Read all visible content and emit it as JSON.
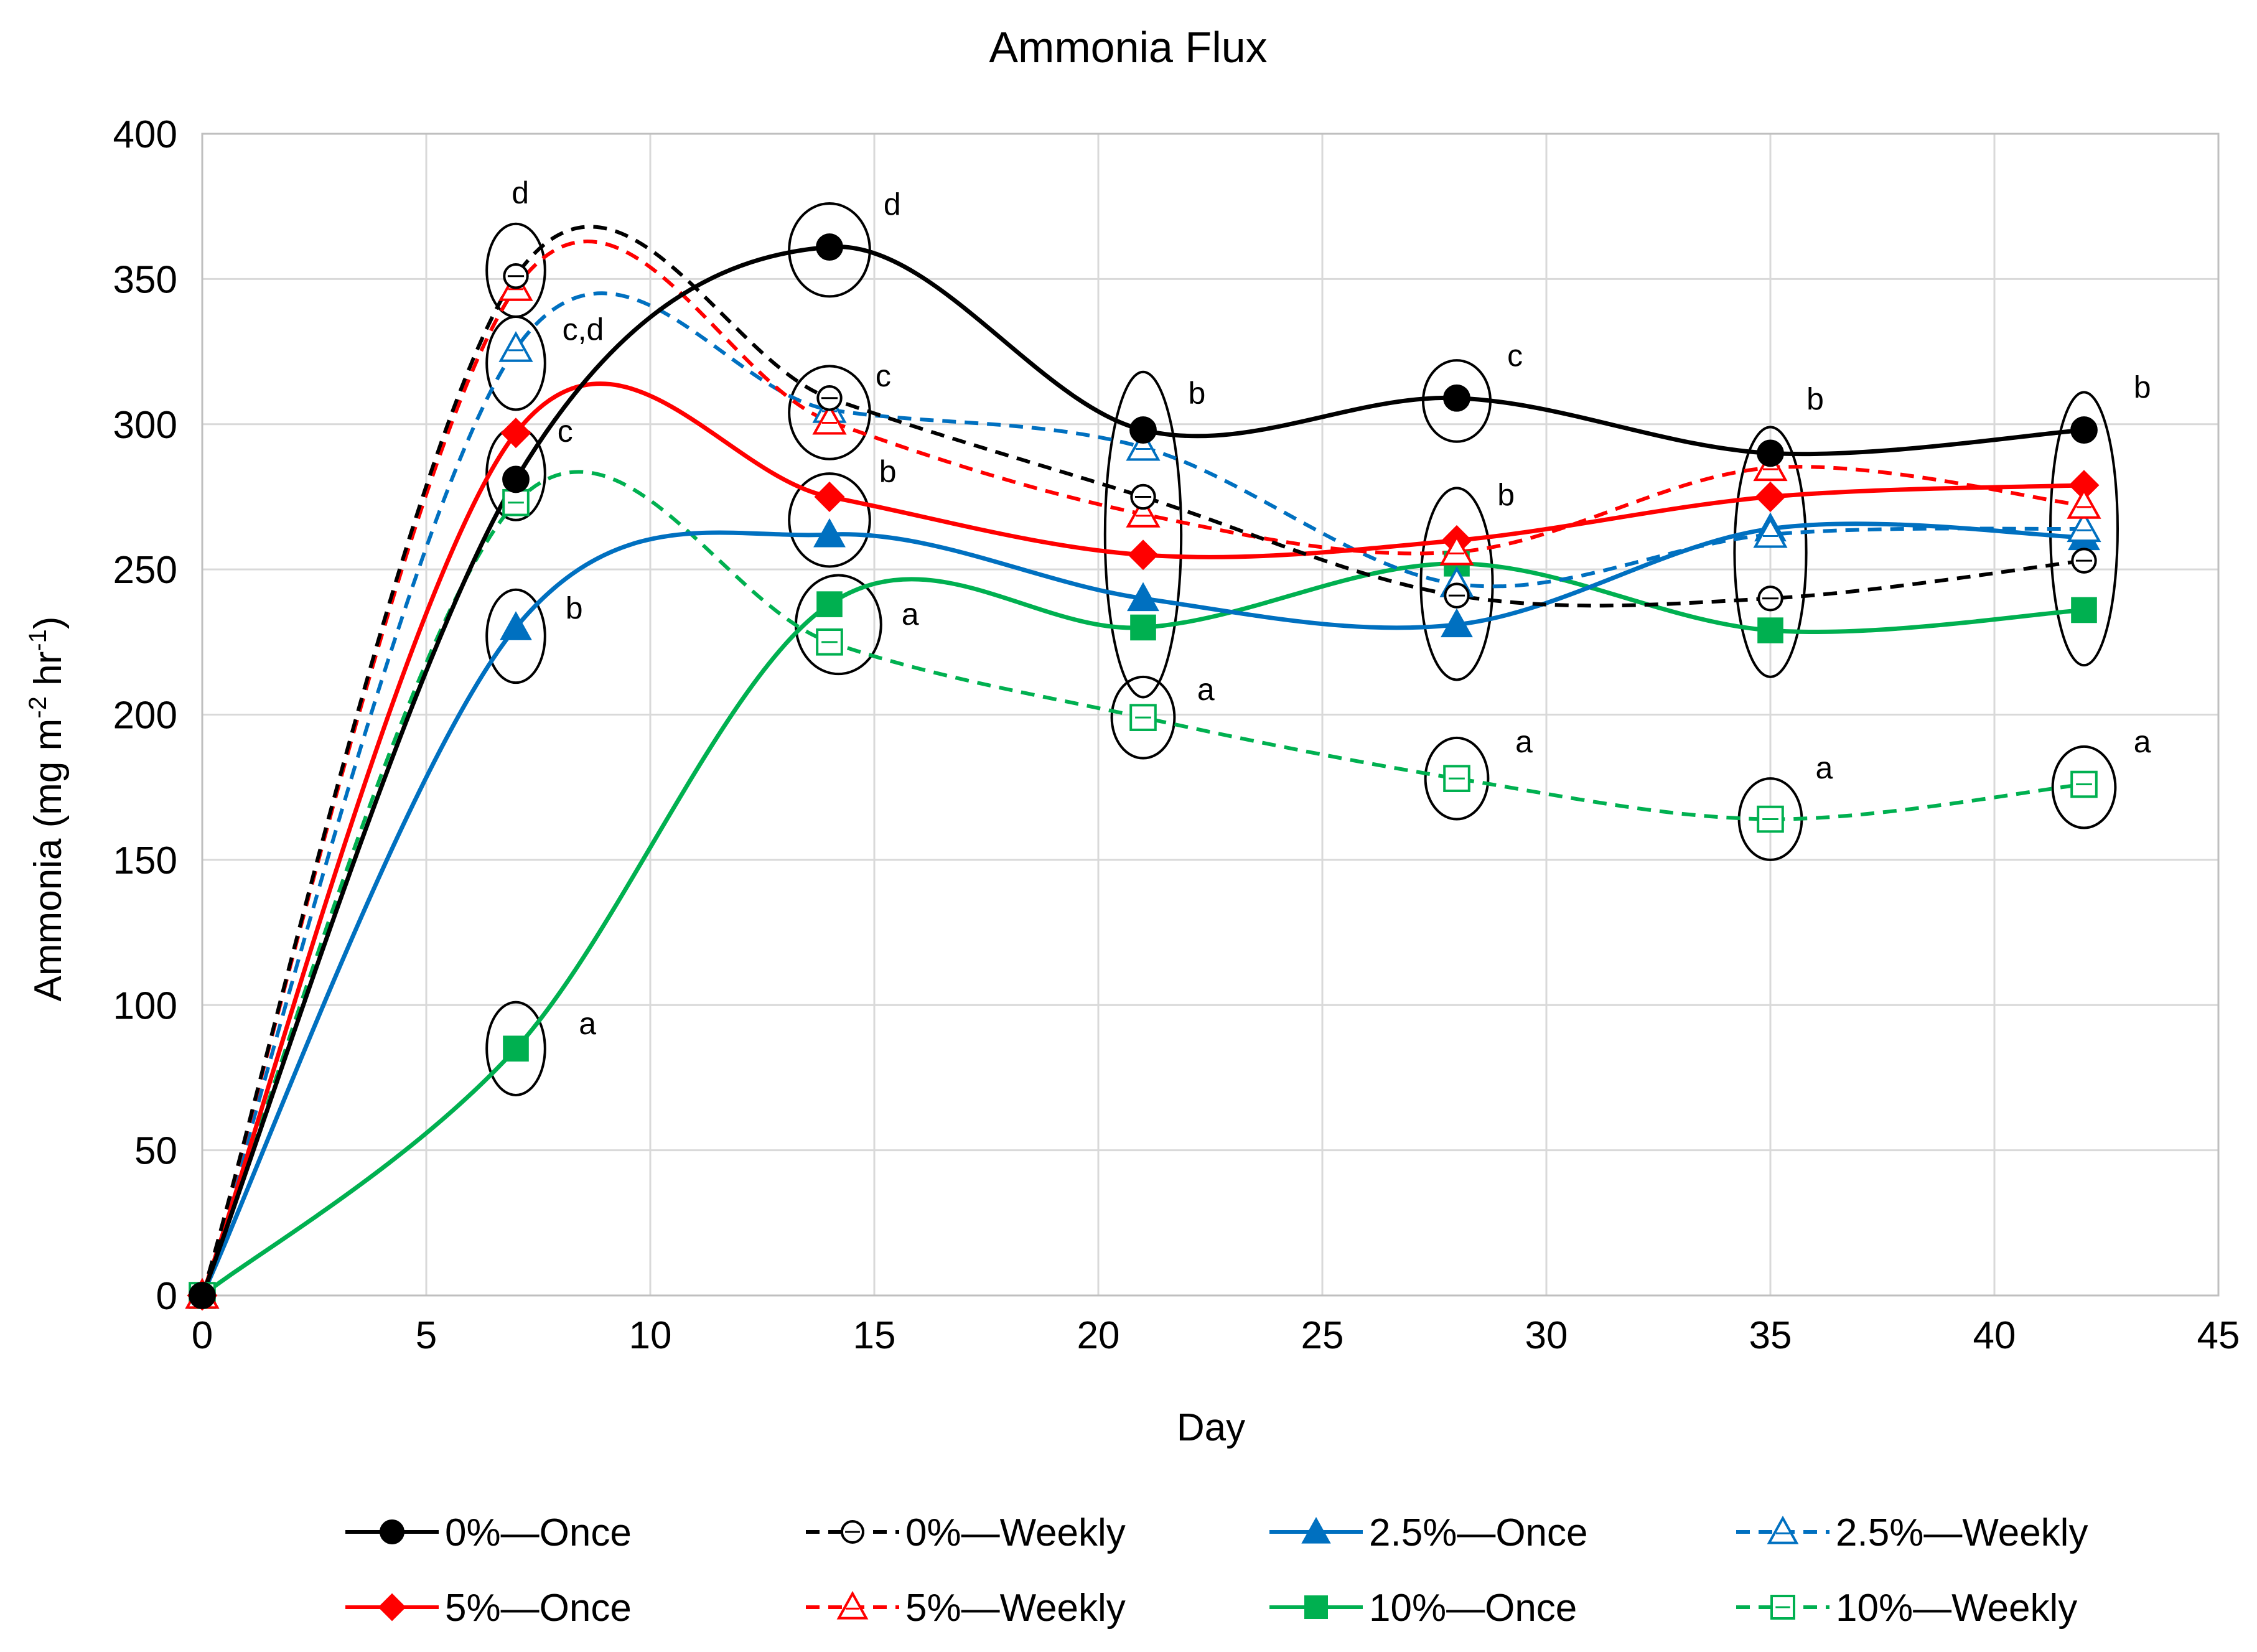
{
  "chart_data": {
    "type": "line",
    "title": "Ammonia Flux",
    "xlabel": "Day",
    "ylabel": "Ammonia (mg m",
    "ylabel_sup1": "-2",
    "ylabel_mid": " hr",
    "ylabel_sup2": "-1",
    "ylabel_end": ")",
    "xlim": [
      0,
      45
    ],
    "ylim": [
      0,
      400
    ],
    "xticks": [
      0,
      5,
      10,
      15,
      20,
      25,
      30,
      35,
      40,
      45
    ],
    "yticks": [
      0,
      50,
      100,
      150,
      200,
      250,
      300,
      350,
      400
    ],
    "grid": true,
    "legend_position": "bottom",
    "series": [
      {
        "name": "0%—Once",
        "color": "#000000",
        "dash": false,
        "marker": "circle",
        "filled": true,
        "x": [
          0,
          7,
          14,
          21,
          28,
          35,
          42
        ],
        "y": [
          0,
          281,
          361,
          298,
          309,
          290,
          298
        ]
      },
      {
        "name": "0%—Weekly",
        "color": "#000000",
        "dash": true,
        "marker": "circle",
        "filled": false,
        "x": [
          0,
          7,
          14,
          21,
          28,
          35,
          42
        ],
        "y": [
          0,
          351,
          309,
          275,
          241,
          240,
          253
        ]
      },
      {
        "name": "2.5%—Once",
        "color": "#0070C0",
        "dash": false,
        "marker": "triangle",
        "filled": true,
        "x": [
          0,
          7,
          14,
          21,
          28,
          35,
          42
        ],
        "y": [
          0,
          230,
          262,
          240,
          231,
          264,
          261
        ]
      },
      {
        "name": "2.5%—Weekly",
        "color": "#0070C0",
        "dash": true,
        "marker": "triangle",
        "filled": false,
        "x": [
          0,
          7,
          14,
          21,
          28,
          35,
          42
        ],
        "y": [
          0,
          326,
          305,
          292,
          245,
          262,
          264
        ]
      },
      {
        "name": "5%—Once",
        "color": "#FF0000",
        "dash": false,
        "marker": "diamond",
        "filled": true,
        "x": [
          0,
          7,
          14,
          21,
          28,
          35,
          42
        ],
        "y": [
          0,
          297,
          275,
          255,
          260,
          275,
          279
        ]
      },
      {
        "name": "5%—Weekly",
        "color": "#FF0000",
        "dash": true,
        "marker": "triangle",
        "filled": false,
        "x": [
          0,
          7,
          14,
          21,
          28,
          35,
          42
        ],
        "y": [
          0,
          347,
          301,
          269,
          256,
          285,
          272
        ]
      },
      {
        "name": "10%—Once",
        "color": "#00B050",
        "dash": false,
        "marker": "square",
        "filled": true,
        "x": [
          0,
          7,
          14,
          21,
          28,
          35,
          42
        ],
        "y": [
          0,
          85,
          238,
          230,
          252,
          229,
          236
        ]
      },
      {
        "name": "10%—Weekly",
        "color": "#00B050",
        "dash": true,
        "marker": "square",
        "filled": false,
        "x": [
          0,
          7,
          14,
          21,
          28,
          35,
          42
        ],
        "y": [
          0,
          273,
          225,
          199,
          178,
          164,
          176
        ]
      }
    ],
    "annotations": [
      {
        "text": "d",
        "x": 7.1,
        "y": 376
      },
      {
        "text": "c,d",
        "x": 8.5,
        "y": 329
      },
      {
        "text": "c",
        "x": 8.1,
        "y": 294
      },
      {
        "text": "b",
        "x": 8.3,
        "y": 233
      },
      {
        "text": "a",
        "x": 8.6,
        "y": 90
      },
      {
        "text": "d",
        "x": 15.4,
        "y": 372
      },
      {
        "text": "c",
        "x": 15.2,
        "y": 313
      },
      {
        "text": "b",
        "x": 15.3,
        "y": 280
      },
      {
        "text": "a",
        "x": 15.8,
        "y": 231
      },
      {
        "text": "b",
        "x": 22.2,
        "y": 307
      },
      {
        "text": "a",
        "x": 22.4,
        "y": 205
      },
      {
        "text": "c",
        "x": 29.3,
        "y": 320
      },
      {
        "text": "b",
        "x": 29.1,
        "y": 272
      },
      {
        "text": "a",
        "x": 29.5,
        "y": 187
      },
      {
        "text": "b",
        "x": 36.0,
        "y": 305
      },
      {
        "text": "a",
        "x": 36.2,
        "y": 178
      },
      {
        "text": "b",
        "x": 43.3,
        "y": 309
      },
      {
        "text": "a",
        "x": 43.3,
        "y": 187
      }
    ],
    "groupings": [
      {
        "x": 7,
        "y": 353,
        "rx": 0.65,
        "ry": 16
      },
      {
        "x": 7,
        "y": 321,
        "rx": 0.65,
        "ry": 16
      },
      {
        "x": 7,
        "y": 283,
        "rx": 0.65,
        "ry": 16
      },
      {
        "x": 7,
        "y": 227,
        "rx": 0.65,
        "ry": 16
      },
      {
        "x": 7,
        "y": 85,
        "rx": 0.65,
        "ry": 16
      },
      {
        "x": 14,
        "y": 360,
        "rx": 0.9,
        "ry": 16
      },
      {
        "x": 14,
        "y": 304,
        "rx": 0.9,
        "ry": 16
      },
      {
        "x": 14,
        "y": 267,
        "rx": 0.9,
        "ry": 16
      },
      {
        "x": 14.2,
        "y": 231,
        "rx": 0.95,
        "ry": 17
      },
      {
        "x": 21,
        "y": 262,
        "rx": 0.85,
        "ry": 56
      },
      {
        "x": 21,
        "y": 199,
        "rx": 0.7,
        "ry": 14
      },
      {
        "x": 28,
        "y": 308,
        "rx": 0.75,
        "ry": 14
      },
      {
        "x": 28,
        "y": 245,
        "rx": 0.8,
        "ry": 33
      },
      {
        "x": 28,
        "y": 178,
        "rx": 0.7,
        "ry": 14
      },
      {
        "x": 35,
        "y": 256,
        "rx": 0.8,
        "ry": 43
      },
      {
        "x": 35,
        "y": 164,
        "rx": 0.7,
        "ry": 14
      },
      {
        "x": 42,
        "y": 264,
        "rx": 0.75,
        "ry": 47
      },
      {
        "x": 42,
        "y": 175,
        "rx": 0.7,
        "ry": 14
      }
    ]
  }
}
